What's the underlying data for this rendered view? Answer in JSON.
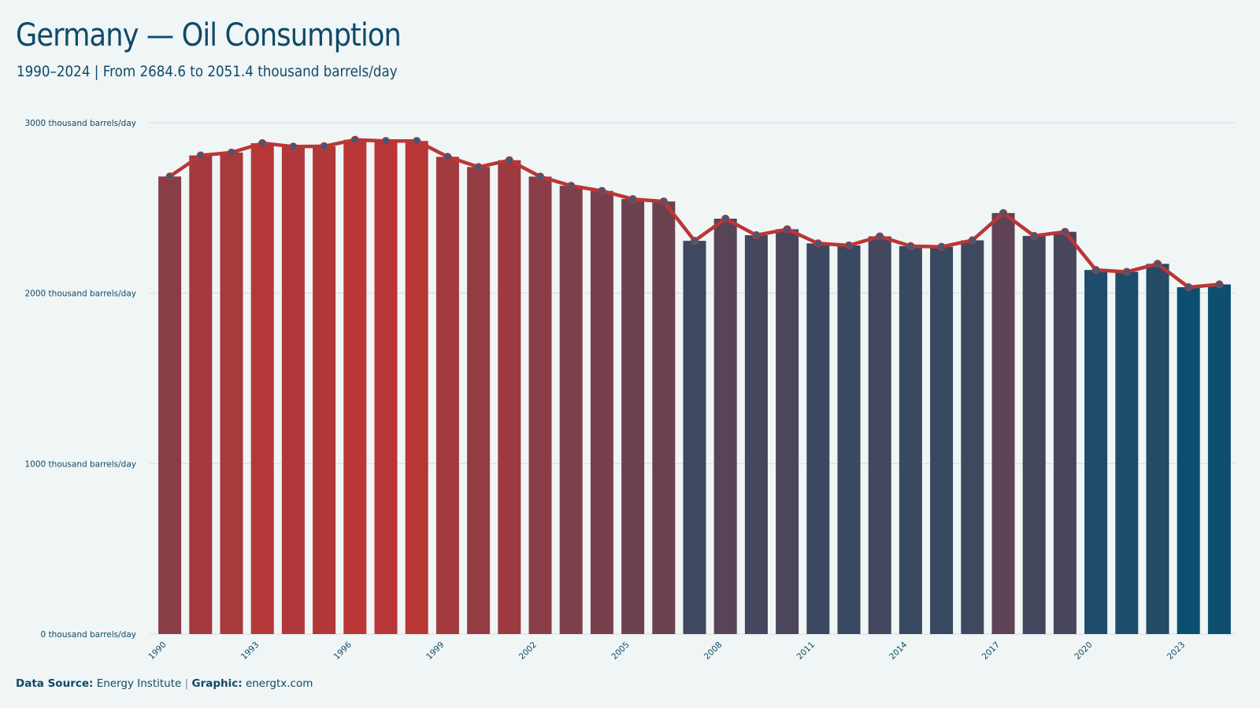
{
  "title": "Germany — Oil Consumption",
  "subtitle": "1990–2024 | From 2684.6 to 2051.4 thousand barrels/day",
  "footer": {
    "source_label": "Data Source:",
    "source_value": "Energy Institute",
    "separator": "|",
    "graphic_label": "Graphic:",
    "graphic_value": "energtx.com"
  },
  "colors": {
    "high": "#bb3636",
    "low": "#0b4f70",
    "line": "#bb3636",
    "point": "#3f5a78",
    "grid": "#d6dde0"
  },
  "chart_data": {
    "type": "bar",
    "x": [
      1990,
      1991,
      1992,
      1993,
      1994,
      1995,
      1996,
      1997,
      1998,
      1999,
      2000,
      2001,
      2002,
      2003,
      2004,
      2005,
      2006,
      2007,
      2008,
      2009,
      2010,
      2011,
      2012,
      2013,
      2014,
      2015,
      2016,
      2017,
      2018,
      2019,
      2020,
      2021,
      2022,
      2023,
      2024
    ],
    "values": [
      2684.6,
      2808,
      2825,
      2880,
      2860,
      2862,
      2900,
      2893,
      2893,
      2800,
      2740,
      2780,
      2684,
      2630,
      2600,
      2552,
      2538,
      2307,
      2437,
      2340,
      2375,
      2292,
      2280,
      2333,
      2276,
      2272,
      2310,
      2470,
      2336,
      2360,
      2136,
      2125,
      2172,
      2035,
      2051.4
    ],
    "x_tick_labels": [
      "1990",
      "1993",
      "1996",
      "1999",
      "2002",
      "2005",
      "2008",
      "2011",
      "2014",
      "2017",
      "2020",
      "2023"
    ],
    "y_ticks": [
      0,
      1000,
      2000,
      3000
    ],
    "y_tick_labels": [
      "0 thousand barrels/day",
      "1000 thousand barrels/day",
      "2000 thousand barrels/day",
      "3000 thousand barrels/day"
    ],
    "ylim": [
      0,
      3000
    ],
    "grid": true,
    "overlay": "line-with-points"
  }
}
